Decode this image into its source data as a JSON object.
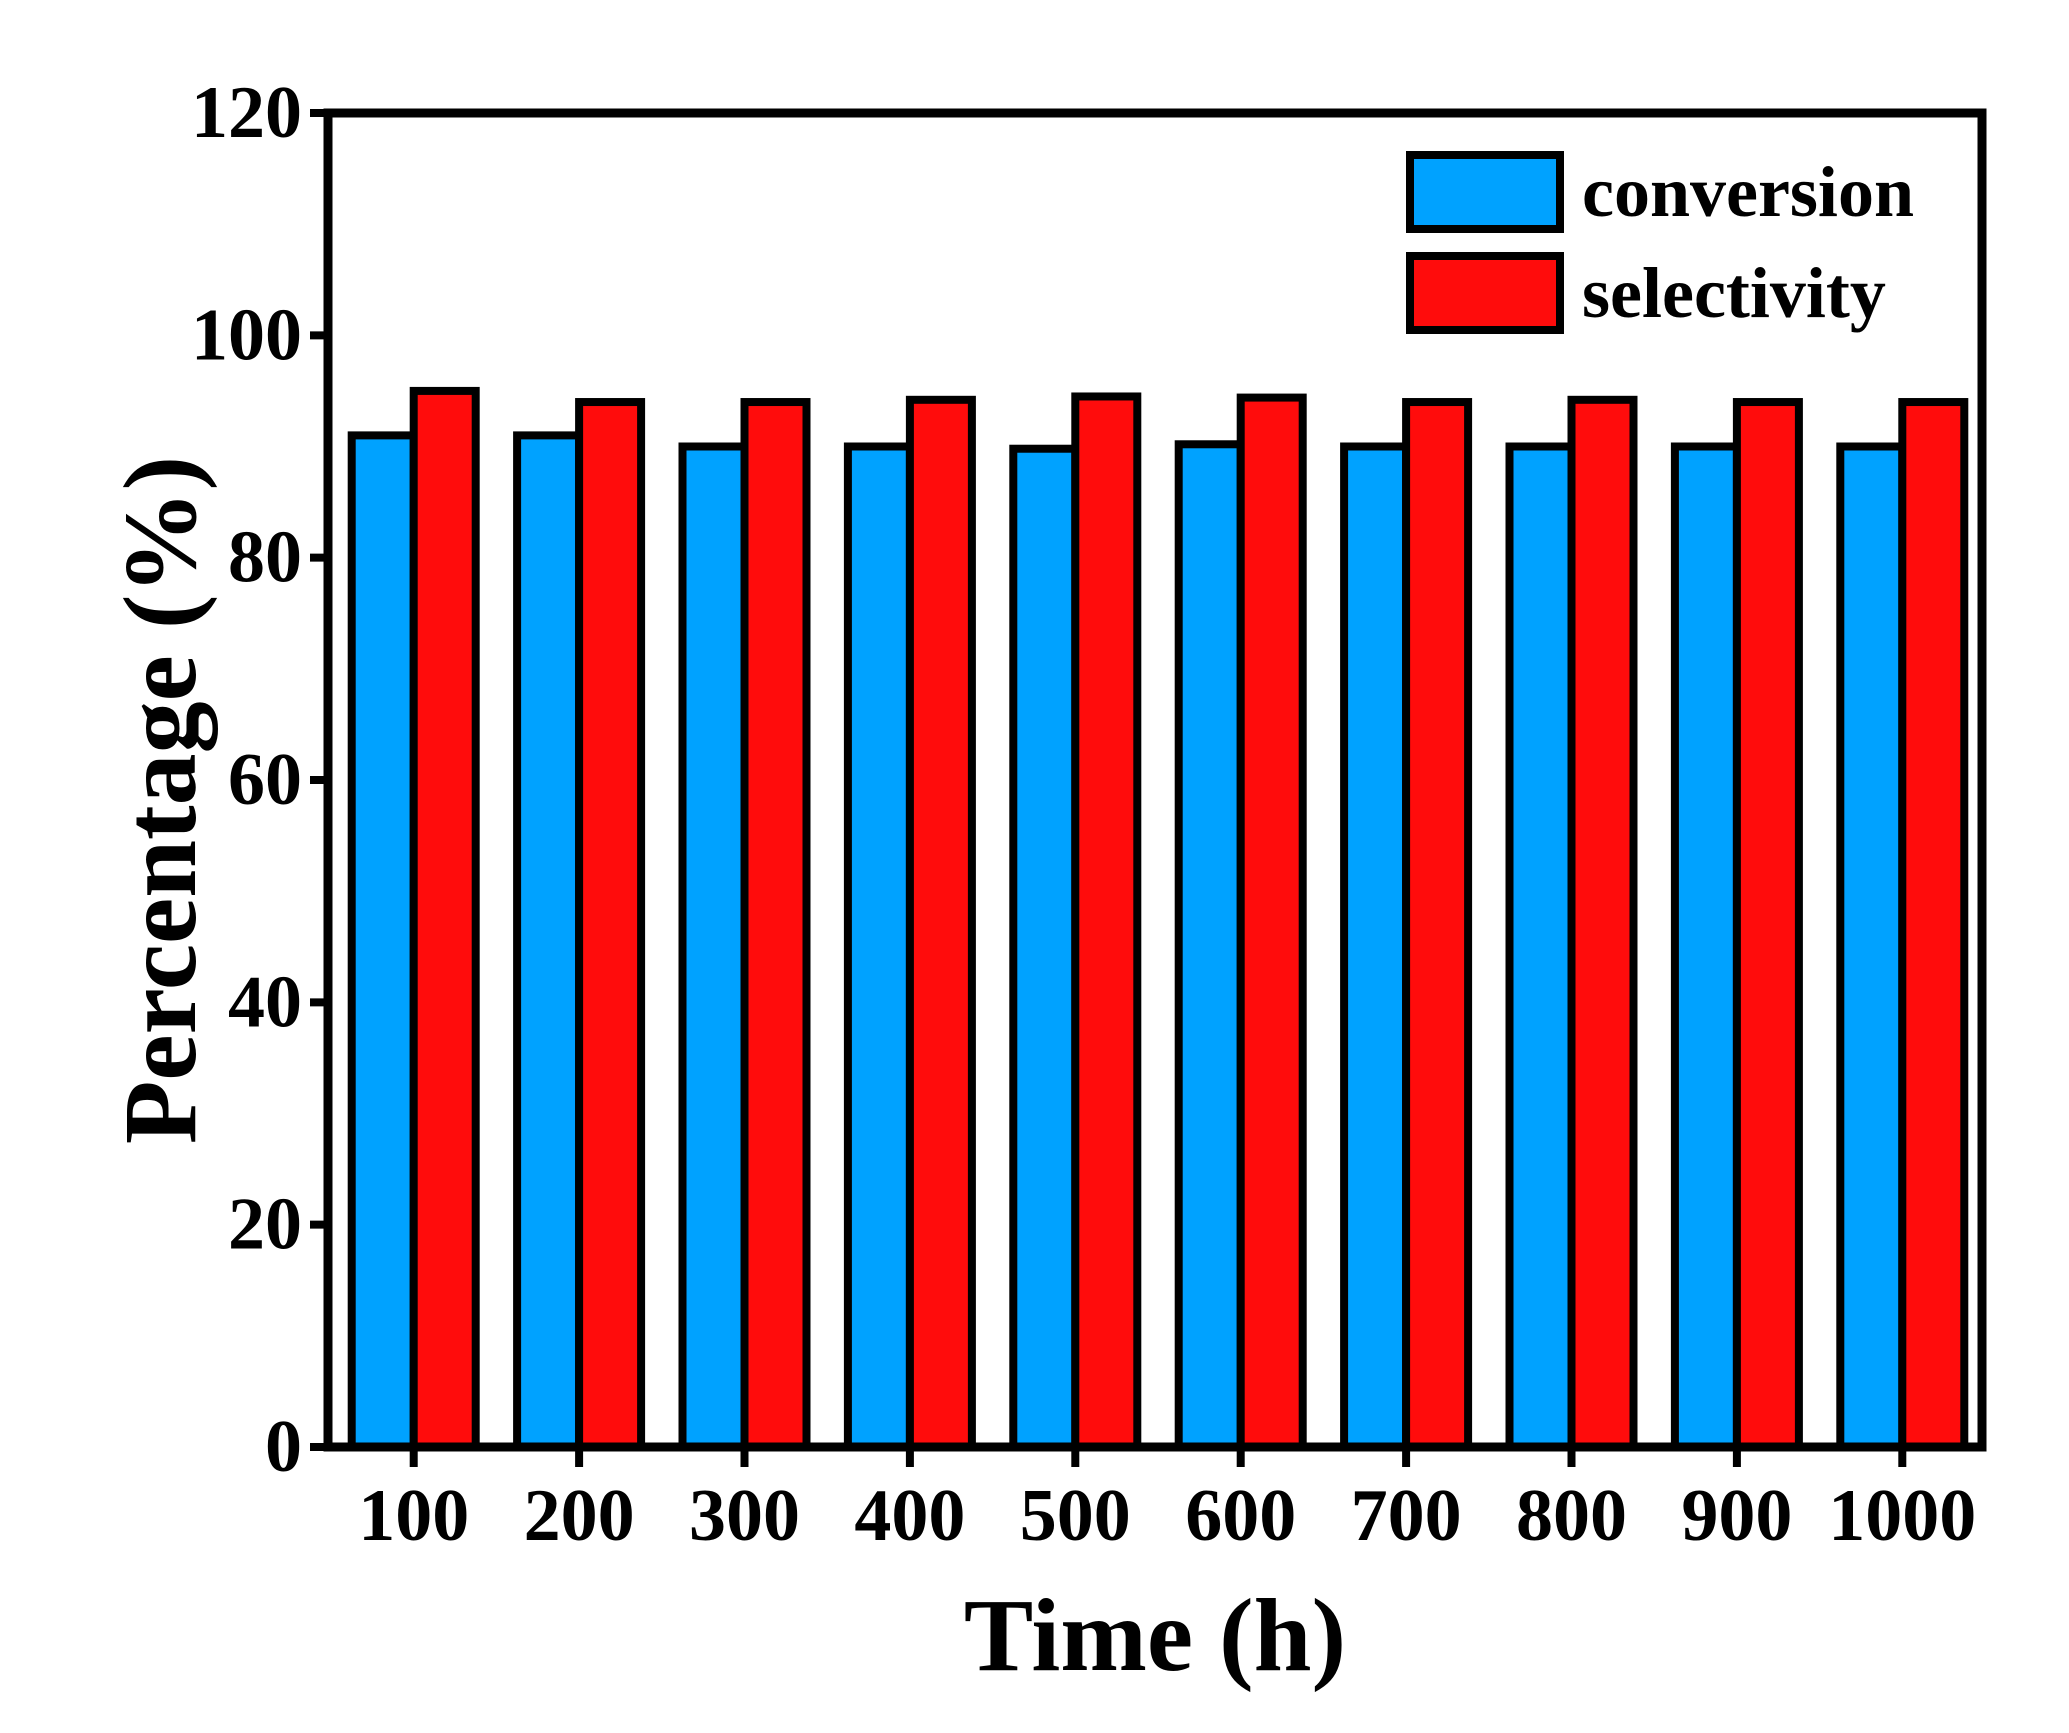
{
  "chart_data": {
    "type": "bar",
    "title": "",
    "xlabel": "Time (h)",
    "ylabel": "Percentage (%)",
    "categories": [
      "100",
      "200",
      "300",
      "400",
      "500",
      "600",
      "700",
      "800",
      "900",
      "1000"
    ],
    "ylim": [
      0,
      120
    ],
    "yticks": [
      0,
      20,
      40,
      60,
      80,
      100,
      120
    ],
    "grid": false,
    "legend_position": "top-right",
    "series": [
      {
        "name": "conversion",
        "color": "#00a2ff",
        "values": [
          91,
          91,
          90,
          90,
          89.8,
          90.2,
          90,
          90,
          90,
          90
        ]
      },
      {
        "name": "selectivity",
        "color": "#ff0c0c",
        "values": [
          95,
          94,
          94,
          94.2,
          94.5,
          94.4,
          94,
          94.2,
          94,
          94
        ]
      }
    ]
  }
}
